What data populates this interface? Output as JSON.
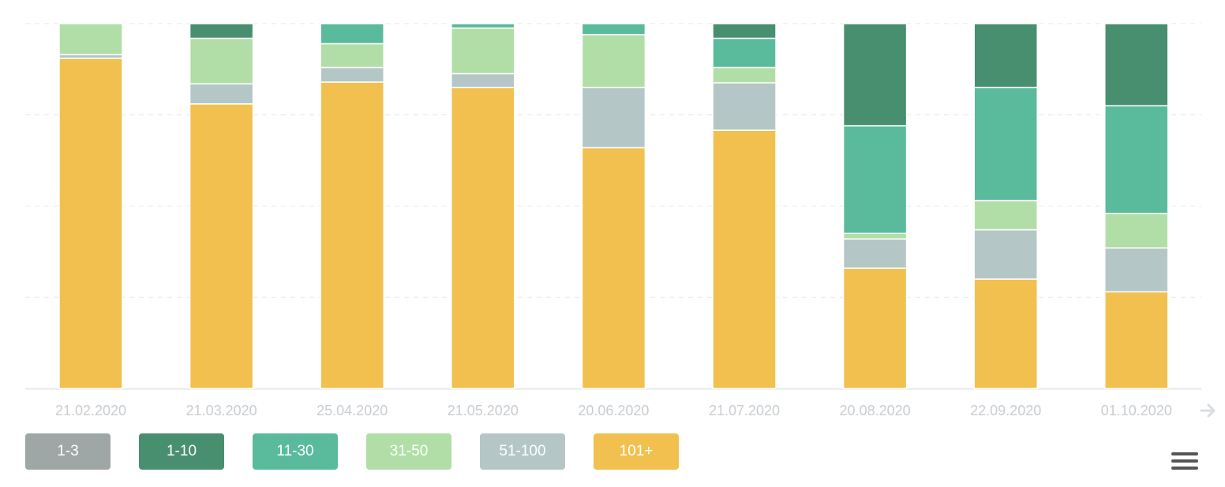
{
  "chart_data": {
    "type": "bar",
    "stacked": true,
    "normalized": true,
    "categories": [
      "21.02.2020",
      "21.03.2020",
      "25.04.2020",
      "21.05.2020",
      "20.06.2020",
      "21.07.2020",
      "20.08.2020",
      "22.09.2020",
      "01.10.2020"
    ],
    "series": [
      {
        "name": "1-3",
        "color": "#9EA7A6",
        "values": [
          0,
          0,
          0,
          0,
          0,
          0,
          0,
          0,
          0
        ]
      },
      {
        "name": "1-10",
        "color": "#478F6F",
        "values": [
          0,
          4,
          0,
          0,
          0,
          4,
          28,
          17.5,
          22.5
        ]
      },
      {
        "name": "11-30",
        "color": "#5ABA9C",
        "values": [
          0,
          0,
          5.5,
          1.2,
          3,
          8,
          29.5,
          31,
          29.5
        ]
      },
      {
        "name": "31-50",
        "color": "#B1DEA7",
        "values": [
          8.5,
          12.5,
          6.5,
          12.5,
          14.5,
          4.2,
          1.5,
          8,
          9.5
        ]
      },
      {
        "name": "51-100",
        "color": "#B5C6C7",
        "values": [
          1,
          5.5,
          4,
          3.8,
          16.5,
          13,
          8,
          13.5,
          12
        ]
      },
      {
        "name": "101+",
        "color": "#F2C04F",
        "values": [
          90.5,
          78,
          84,
          82.5,
          66,
          70.8,
          33,
          30,
          26.5
        ]
      }
    ],
    "ylim": [
      0,
      100
    ],
    "grid": true,
    "legend_position": "bottom-left"
  }
}
